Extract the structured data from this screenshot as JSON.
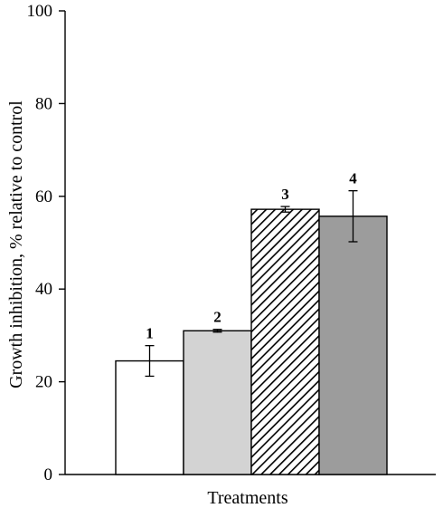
{
  "chart_data": {
    "type": "bar",
    "categories": [
      "1",
      "2",
      "3",
      "4"
    ],
    "values": [
      24.5,
      31.0,
      57.2,
      55.7
    ],
    "errors": [
      3.3,
      0.3,
      0.6,
      5.5
    ],
    "fills": [
      "#ffffff",
      "#d3d3d3",
      "hatch",
      "#9c9c9c"
    ],
    "xlabel": "Treatments",
    "ylabel": "Growth inhibition, % relative to control",
    "ylim": [
      0,
      100
    ],
    "yticks": [
      0,
      20,
      40,
      60,
      80,
      100
    ],
    "grid": false,
    "legend": "none"
  }
}
